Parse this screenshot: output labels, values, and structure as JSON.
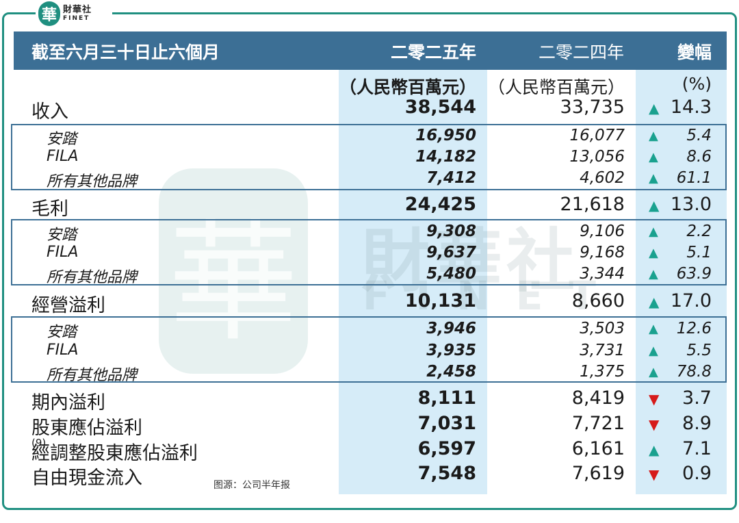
{
  "logo": {
    "badge": "華",
    "cn": "財華社",
    "en": "FINET"
  },
  "watermark": {
    "seal": "華",
    "cn": "財華社",
    "en": "FINET"
  },
  "header": {
    "label": "截至六月三十日止六個月",
    "col_2025": "二零二五年",
    "col_2024": "二零二四年",
    "col_change": "變幅"
  },
  "units": {
    "u2025": "（人民幣百萬元）",
    "u2024": "（人民幣百萬元）",
    "pct": "(%)"
  },
  "rows": {
    "revenue": {
      "label": "收入",
      "v2025": "38,544",
      "v2024": "33,735",
      "dir": "▲",
      "pct": "14.3"
    },
    "rev_anta": {
      "label": "安踏",
      "v2025": "16,950",
      "v2024": "16,077",
      "dir": "▲",
      "pct": "5.4"
    },
    "rev_fila": {
      "label": "FILA",
      "v2025": "14,182",
      "v2024": "13,056",
      "dir": "▲",
      "pct": "8.6"
    },
    "rev_other": {
      "label": "所有其他品牌",
      "v2025": "7,412",
      "v2024": "4,602",
      "dir": "▲",
      "pct": "61.1"
    },
    "gross": {
      "label": "毛利",
      "v2025": "24,425",
      "v2024": "21,618",
      "dir": "▲",
      "pct": "13.0"
    },
    "gp_anta": {
      "label": "安踏",
      "v2025": "9,308",
      "v2024": "9,106",
      "dir": "▲",
      "pct": "2.2"
    },
    "gp_fila": {
      "label": "FILA",
      "v2025": "9,637",
      "v2024": "9,168",
      "dir": "▲",
      "pct": "5.1"
    },
    "gp_other": {
      "label": "所有其他品牌",
      "v2025": "5,480",
      "v2024": "3,344",
      "dir": "▲",
      "pct": "63.9"
    },
    "op": {
      "label": "經營溢利",
      "v2025": "10,131",
      "v2024": "8,660",
      "dir": "▲",
      "pct": "17.0"
    },
    "op_anta": {
      "label": "安踏",
      "v2025": "3,946",
      "v2024": "3,503",
      "dir": "▲",
      "pct": "12.6"
    },
    "op_fila": {
      "label": "FILA",
      "v2025": "3,935",
      "v2024": "3,731",
      "dir": "▲",
      "pct": "5.5"
    },
    "op_other": {
      "label": "所有其他品牌",
      "v2025": "2,458",
      "v2024": "1,375",
      "dir": "▲",
      "pct": "78.8"
    },
    "period_profit": {
      "label": "期內溢利",
      "v2025": "8,111",
      "v2024": "8,419",
      "dir": "▼",
      "pct": "3.7"
    },
    "sh_profit": {
      "label": "股東應佔溢利",
      "v2025": "7,031",
      "v2024": "7,721",
      "dir": "▼",
      "pct": "8.9"
    },
    "adj_sh_profit": {
      "label": "經調整股東應佔溢利",
      "note": "(9)",
      "v2025": "6,597",
      "v2024": "6,161",
      "dir": "▲",
      "pct": "7.1"
    },
    "fcf": {
      "label": "自由現金流入",
      "v2025": "7,548",
      "v2024": "7,619",
      "dir": "▼",
      "pct": "0.9"
    }
  },
  "source": "图源：公司半年报"
}
